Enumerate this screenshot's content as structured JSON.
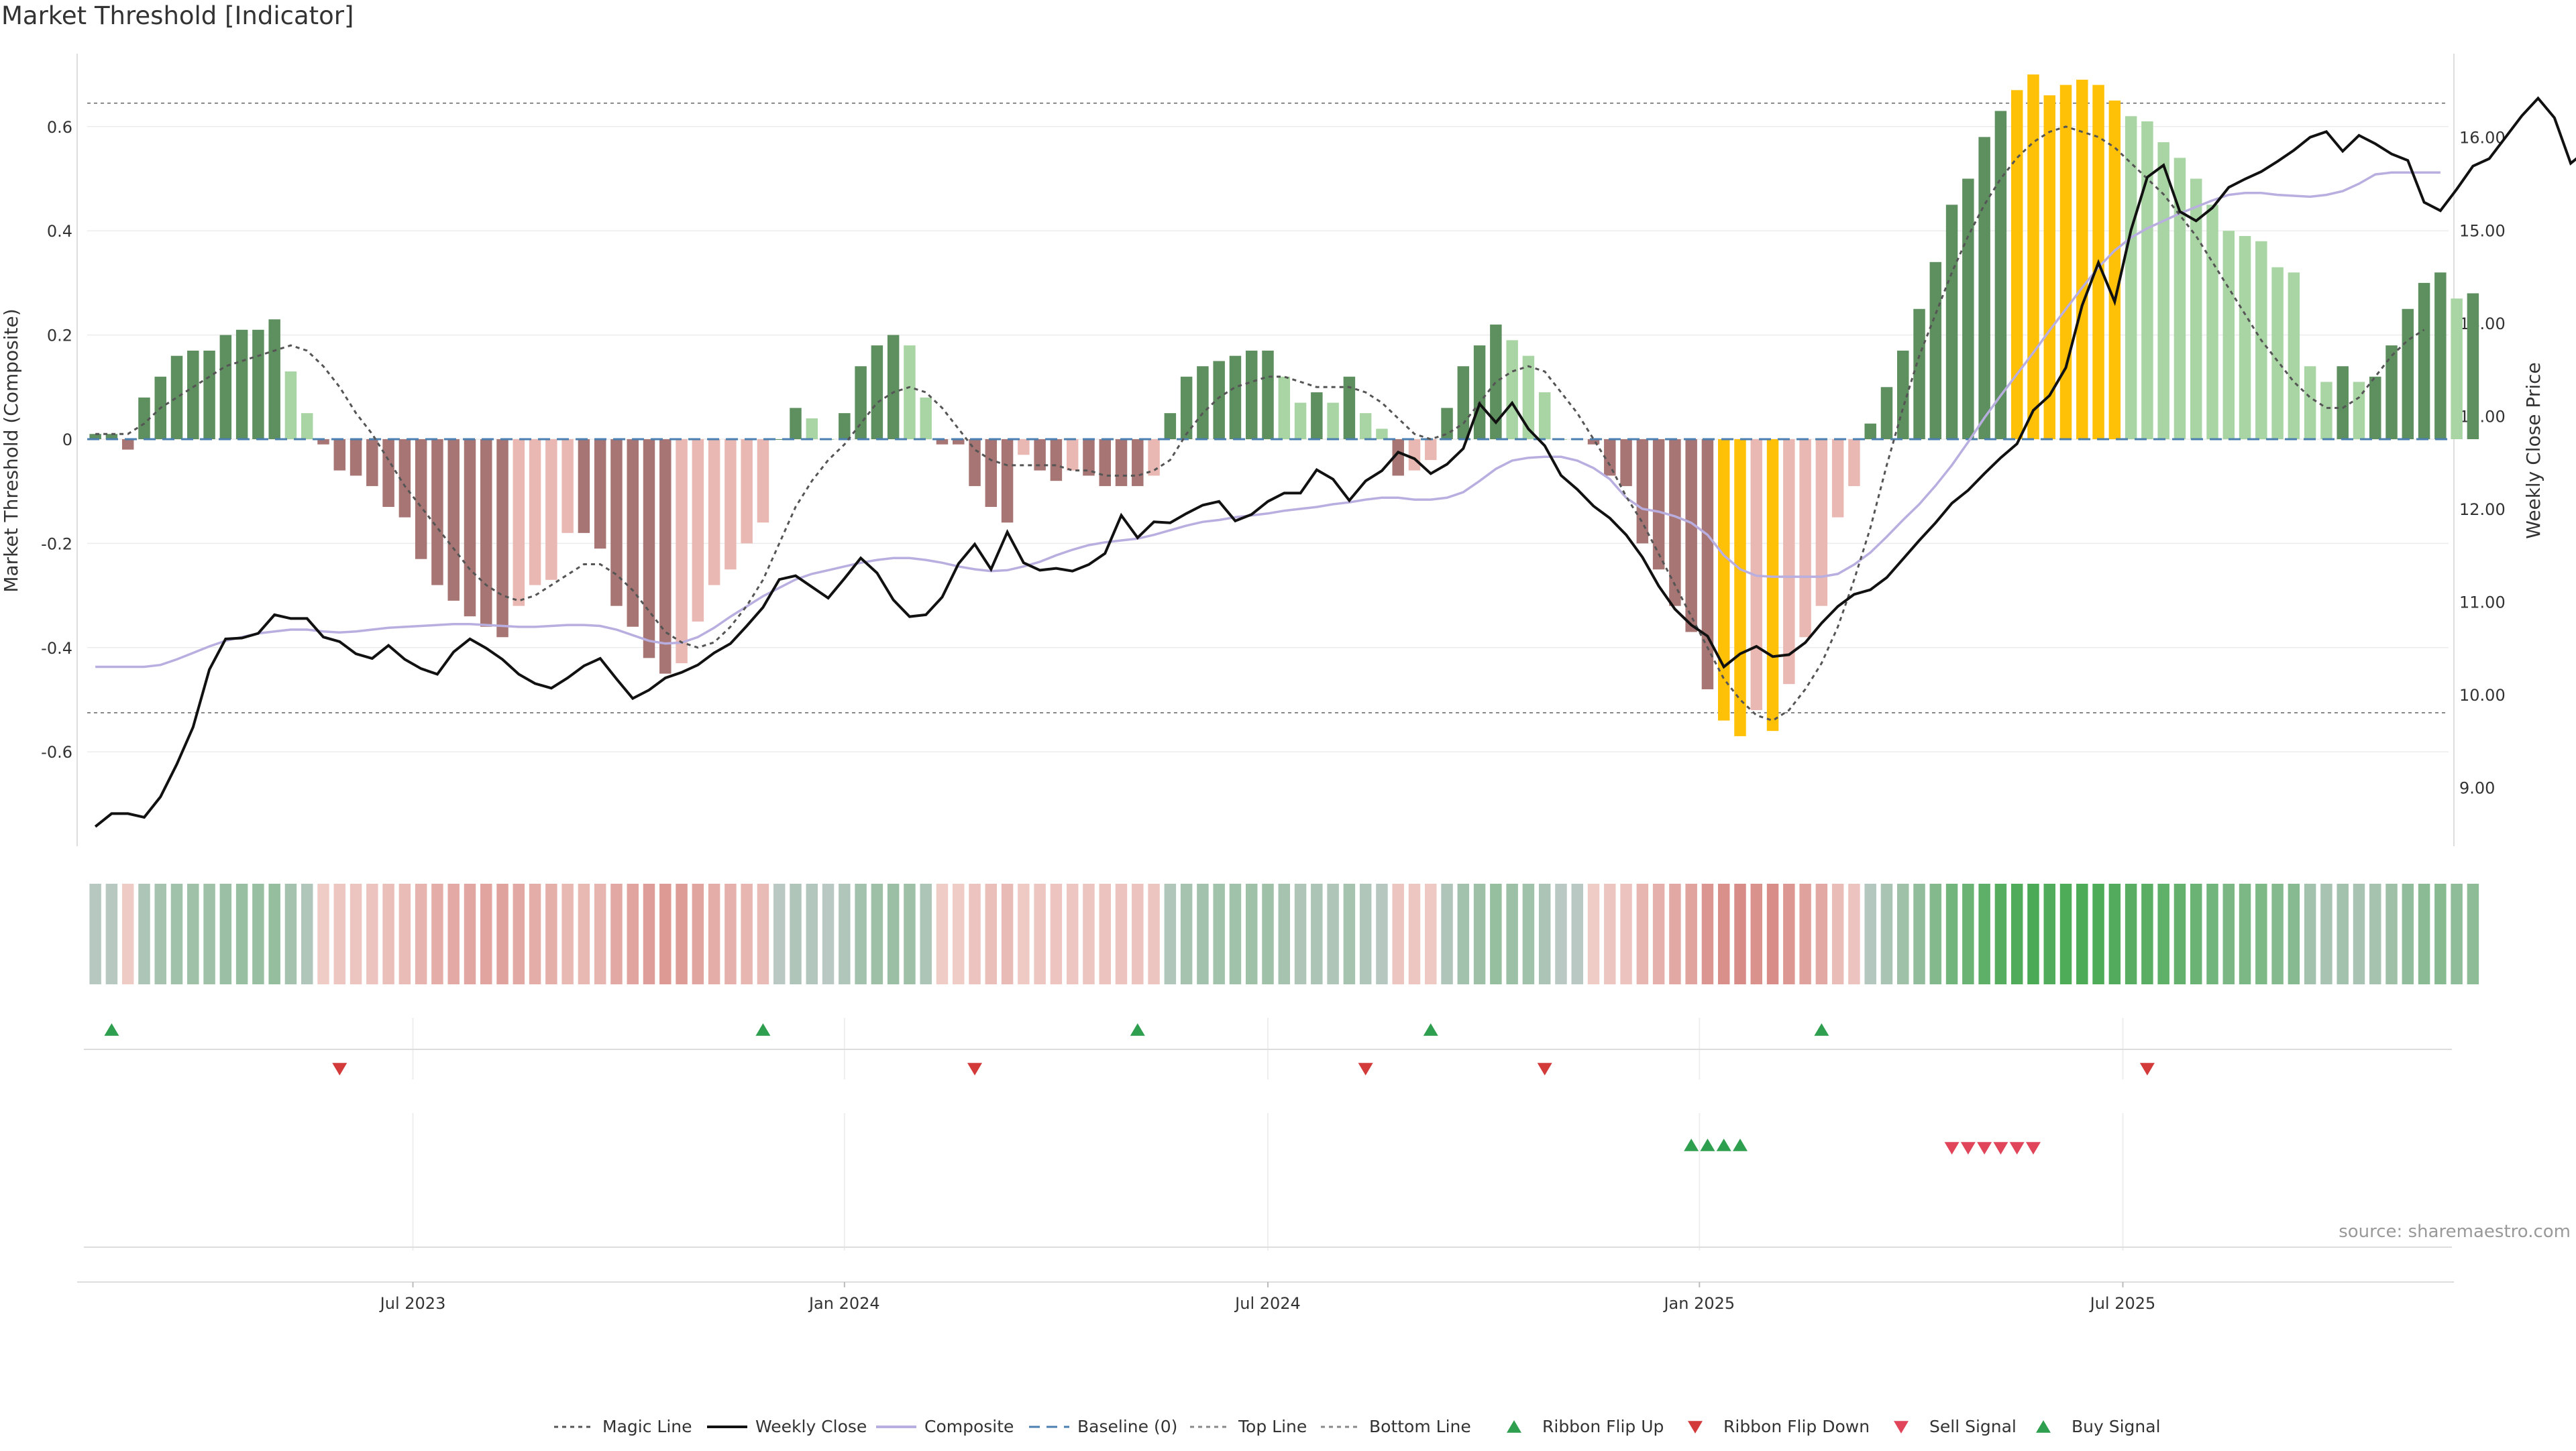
{
  "title": "Market Threshold [Indicator]",
  "source": "source: sharemaestro.com",
  "chart_data": {
    "type": "bar",
    "weeks": 145,
    "y_left": {
      "label": "Market Threshold (Composite)",
      "ylim": [
        -0.74,
        0.74
      ],
      "ticks": [
        -0.6,
        -0.4,
        -0.2,
        0,
        0.2,
        0.4,
        0.6
      ],
      "tick_labels": [
        "-0.6",
        "-0.4",
        "-0.2",
        "0",
        "0.2",
        "0.4",
        "0.6"
      ]
    },
    "y_right": {
      "label": "Weekly Close Price",
      "ylim": [
        8.6,
        16.9
      ],
      "ticks": [
        9,
        10,
        11,
        12,
        13,
        14,
        15,
        16
      ],
      "tick_labels": [
        "9.00",
        "10.00",
        "11.00",
        "12.00",
        "13.00",
        "14.00",
        "15.00",
        "16.00"
      ]
    },
    "x_ticks": [
      {
        "label": "Jul 2023",
        "week": 20
      },
      {
        "label": "Jan 2024",
        "week": 46.5
      },
      {
        "label": "Jul 2024",
        "week": 72.5
      },
      {
        "label": "Jan 2025",
        "week": 99
      },
      {
        "label": "Jul 2025",
        "week": 125
      }
    ],
    "top_line": 0.645,
    "bottom_line": -0.525,
    "baseline": 0,
    "composite_bars": [
      0.01,
      0.01,
      -0.02,
      0.08,
      0.12,
      0.16,
      0.17,
      0.17,
      0.2,
      0.21,
      0.21,
      0.23,
      0.13,
      0.05,
      -0.01,
      -0.06,
      -0.07,
      -0.09,
      -0.13,
      -0.15,
      -0.23,
      -0.28,
      -0.31,
      -0.34,
      -0.36,
      -0.38,
      -0.32,
      -0.28,
      -0.27,
      -0.18,
      -0.18,
      -0.21,
      -0.32,
      -0.36,
      -0.42,
      -0.45,
      -0.43,
      -0.35,
      -0.28,
      -0.25,
      -0.2,
      -0.16,
      0,
      0.06,
      0.04,
      0,
      0.05,
      0.14,
      0.18,
      0.2,
      0.18,
      0.08,
      -0.01,
      -0.01,
      -0.09,
      -0.13,
      -0.16,
      -0.03,
      -0.06,
      -0.08,
      -0.06,
      -0.07,
      -0.09,
      -0.09,
      -0.09,
      -0.07,
      0.05,
      0.12,
      0.14,
      0.15,
      0.16,
      0.17,
      0.17,
      0.12,
      0.07,
      0.09,
      0.07,
      0.12,
      0.05,
      0.02,
      -0.07,
      -0.06,
      -0.04,
      0.06,
      0.14,
      0.18,
      0.22,
      0.19,
      0.16,
      0.09,
      0,
      0,
      -0.01,
      -0.07,
      -0.09,
      -0.2,
      -0.25,
      -0.32,
      -0.37,
      -0.48,
      -0.54,
      -0.57,
      -0.52,
      -0.56,
      -0.47,
      -0.38,
      -0.32,
      -0.15,
      -0.09,
      0.03,
      0.1,
      0.17,
      0.25,
      0.34,
      0.45,
      0.5,
      0.58,
      0.63,
      0.67,
      0.7,
      0.66,
      0.68,
      0.69,
      0.68,
      0.65,
      0.62,
      0.61,
      0.57,
      0.54,
      0.5,
      0.45,
      0.4,
      0.39,
      0.38,
      0.33,
      0.32,
      0.14,
      0.11,
      0.14,
      0.11,
      0.12,
      0.18,
      0.25,
      0.3,
      0.32,
      0.27,
      0.28
    ],
    "magic_line": [
      0.01,
      0.01,
      0.01,
      0.03,
      0.06,
      0.08,
      0.1,
      0.12,
      0.14,
      0.15,
      0.16,
      0.17,
      0.18,
      0.17,
      0.14,
      0.1,
      0.05,
      0.01,
      -0.04,
      -0.09,
      -0.13,
      -0.17,
      -0.21,
      -0.25,
      -0.28,
      -0.3,
      -0.31,
      -0.3,
      -0.28,
      -0.26,
      -0.24,
      -0.24,
      -0.26,
      -0.29,
      -0.33,
      -0.37,
      -0.39,
      -0.4,
      -0.39,
      -0.36,
      -0.32,
      -0.27,
      -0.2,
      -0.13,
      -0.08,
      -0.04,
      -0.01,
      0.03,
      0.07,
      0.09,
      0.1,
      0.09,
      0.06,
      0.02,
      -0.02,
      -0.04,
      -0.05,
      -0.05,
      -0.05,
      -0.05,
      -0.06,
      -0.06,
      -0.07,
      -0.07,
      -0.07,
      -0.06,
      -0.04,
      0.01,
      0.05,
      0.08,
      0.1,
      0.11,
      0.12,
      0.12,
      0.11,
      0.1,
      0.1,
      0.1,
      0.09,
      0.07,
      0.04,
      0.01,
      0,
      0.01,
      0.03,
      0.07,
      0.11,
      0.13,
      0.14,
      0.13,
      0.09,
      0.05,
      0,
      -0.05,
      -0.11,
      -0.16,
      -0.22,
      -0.28,
      -0.34,
      -0.4,
      -0.46,
      -0.5,
      -0.53,
      -0.54,
      -0.52,
      -0.48,
      -0.43,
      -0.36,
      -0.27,
      -0.17,
      -0.05,
      0.06,
      0.16,
      0.24,
      0.32,
      0.39,
      0.45,
      0.5,
      0.54,
      0.57,
      0.59,
      0.6,
      0.59,
      0.58,
      0.56,
      0.53,
      0.5,
      0.47,
      0.43,
      0.39,
      0.34,
      0.29,
      0.24,
      0.19,
      0.15,
      0.11,
      0.08,
      0.06,
      0.06,
      0.08,
      0.12,
      0.16,
      0.19,
      0.21
    ],
    "composite_line": [
      0.02,
      0.02,
      0.02,
      0.02,
      0.02,
      0.02,
      0.02,
      0.02,
      0.02,
      0.02,
      0.02,
      0.02,
      0.02,
      0.02,
      0.02,
      0.01,
      0.01,
      0.01,
      0.01,
      0.01,
      0.01,
      0.01,
      0.01,
      0.01,
      0.01,
      0.0,
      0.0,
      0.0,
      0.0,
      0.0,
      0.0,
      0.0,
      0.0,
      0.0,
      0.0,
      0.0,
      0.0,
      0.0,
      0.0,
      0.0,
      0.0,
      0.0,
      0.0,
      0.0,
      0.0,
      0.0,
      0.0,
      0.0,
      0.0,
      0.0,
      0.0,
      0.0,
      0.0,
      0.0,
      0.0,
      0.0,
      0.0,
      0.0,
      0.0,
      0.0,
      0.0,
      0.0,
      0.0,
      0.0,
      0.0,
      0.0,
      0.0,
      0.0,
      0.0,
      0.0,
      0.0,
      0.0,
      0.0,
      0.0,
      0.0,
      0.0,
      0.0,
      0.0,
      0.0,
      0.0,
      0.0,
      0.0,
      0.0,
      0.0,
      0.0,
      0.0,
      0.0,
      0.0,
      0.0,
      0.0,
      0.0,
      0.0,
      0.0,
      0.0,
      0.0,
      0.0,
      0.0,
      0.0,
      0.0,
      0.0,
      0.0,
      0.0,
      0.0,
      0.0,
      0.0,
      0.0,
      0.0,
      0.0,
      0.0,
      0.0,
      0.0,
      0.0,
      0.0,
      0.0,
      0.0,
      0.0,
      0.0,
      0.0,
      0.0,
      0.0,
      0.0,
      0.0,
      0.0,
      0.0,
      0.0,
      0.0,
      0.0,
      0.0,
      0.0,
      0.0,
      0.0,
      0.0,
      0.0,
      0.0,
      0.0,
      0.0,
      0.0,
      0.0,
      0.0,
      0.0,
      0.0,
      0.0,
      0.0,
      0.0,
      0.0
    ],
    "composite_smooth_price": [
      10.3,
      10.3,
      10.3,
      10.3,
      10.32,
      10.38,
      10.45,
      10.52,
      10.58,
      10.62,
      10.66,
      10.68,
      10.7,
      10.7,
      10.68,
      10.67,
      10.68,
      10.7,
      10.72,
      10.73,
      10.74,
      10.75,
      10.76,
      10.76,
      10.75,
      10.74,
      10.73,
      10.73,
      10.74,
      10.75,
      10.75,
      10.74,
      10.7,
      10.64,
      10.58,
      10.55,
      10.56,
      10.62,
      10.72,
      10.84,
      10.95,
      11.06,
      11.15,
      11.24,
      11.3,
      11.34,
      11.38,
      11.42,
      11.45,
      11.47,
      11.47,
      11.45,
      11.42,
      11.38,
      11.35,
      11.33,
      11.34,
      11.38,
      11.43,
      11.5,
      11.56,
      11.61,
      11.64,
      11.66,
      11.68,
      11.72,
      11.77,
      11.82,
      11.86,
      11.88,
      11.91,
      11.93,
      11.95,
      11.98,
      12.0,
      12.02,
      12.05,
      12.07,
      12.1,
      12.12,
      12.12,
      12.1,
      12.1,
      12.12,
      12.18,
      12.3,
      12.43,
      12.52,
      12.55,
      12.56,
      12.56,
      12.52,
      12.44,
      12.32,
      12.12,
      12.0,
      11.97,
      11.92,
      11.85,
      11.72,
      11.5,
      11.35,
      11.28,
      11.27,
      11.27,
      11.27,
      11.27,
      11.3,
      11.4,
      11.53,
      11.7,
      11.88,
      12.05,
      12.25,
      12.47,
      12.72,
      12.98,
      13.22,
      13.45,
      13.68,
      13.92,
      14.15,
      14.38,
      14.6,
      14.78,
      14.92,
      15.02,
      15.1,
      15.18,
      15.25,
      15.32,
      15.38,
      15.4,
      15.4,
      15.38,
      15.37,
      15.36,
      15.38,
      15.42,
      15.5,
      15.6,
      15.62,
      15.62,
      15.62,
      15.62
    ],
    "weekly_close": [
      8.58,
      8.72,
      8.72,
      8.68,
      8.9,
      9.25,
      9.65,
      10.27,
      10.6,
      10.61,
      10.66,
      10.86,
      10.82,
      10.82,
      10.62,
      10.57,
      10.44,
      10.39,
      10.53,
      10.38,
      10.28,
      10.22,
      10.46,
      10.6,
      10.5,
      10.38,
      10.22,
      10.12,
      10.07,
      10.18,
      10.31,
      10.39,
      10.17,
      9.96,
      10.05,
      10.18,
      10.24,
      10.32,
      10.45,
      10.55,
      10.74,
      10.94,
      11.24,
      11.28,
      11.16,
      11.04,
      11.25,
      11.47,
      11.31,
      11.02,
      10.84,
      10.86,
      11.05,
      11.41,
      11.62,
      11.35,
      11.75,
      11.42,
      11.34,
      11.36,
      11.33,
      11.4,
      11.52,
      11.93,
      11.69,
      11.86,
      11.85,
      11.95,
      12.04,
      12.08,
      11.87,
      11.94,
      12.08,
      12.17,
      12.17,
      12.42,
      12.32,
      12.09,
      12.3,
      12.41,
      12.61,
      12.54,
      12.38,
      12.48,
      12.65,
      13.13,
      12.93,
      13.14,
      12.86,
      12.68,
      12.36,
      12.21,
      12.03,
      11.9,
      11.72,
      11.48,
      11.17,
      10.92,
      10.75,
      10.63,
      10.3,
      10.44,
      10.52,
      10.41,
      10.43,
      10.56,
      10.77,
      10.95,
      11.08,
      11.13,
      11.26,
      11.46,
      11.66,
      11.85,
      12.06,
      12.2,
      12.38,
      12.55,
      12.7,
      13.06,
      13.22,
      13.52,
      14.19,
      14.65,
      14.23,
      15.0,
      15.57,
      15.7,
      15.2,
      15.1,
      15.24,
      15.46,
      15.55,
      15.63,
      15.74,
      15.86,
      16.0,
      16.06,
      15.85,
      16.02,
      15.93,
      15.82,
      15.75,
      15.3,
      15.21,
      15.44,
      15.69,
      15.77,
      16.0,
      16.23,
      16.42,
      16.21,
      15.72,
      15.86
    ],
    "ribbon_colors": [],
    "ribbon_flip_up_weeks": [
      1,
      41,
      64,
      82,
      106
    ],
    "ribbon_flip_down_weeks": [
      15,
      54,
      78,
      89,
      126
    ],
    "buy_signal_weeks": [
      98,
      99,
      100,
      101
    ],
    "sell_signal_weeks": [
      114,
      115,
      116,
      117,
      118,
      119
    ],
    "legend": [
      {
        "label": "Magic Line",
        "kind": "dotted",
        "color": "#555555"
      },
      {
        "label": "Weekly Close",
        "kind": "solid",
        "color": "#111111"
      },
      {
        "label": "Composite",
        "kind": "solid",
        "color": "#b9aee0"
      },
      {
        "label": "Baseline (0)",
        "kind": "dashed",
        "color": "#4a7fb0"
      },
      {
        "label": "Top Line",
        "kind": "dotted",
        "color": "#888888"
      },
      {
        "label": "Bottom Line",
        "kind": "dotted",
        "color": "#888888"
      },
      {
        "label": "Ribbon Flip Up",
        "kind": "tri-up",
        "color": "#2e9e4f"
      },
      {
        "label": "Ribbon Flip Down",
        "kind": "tri-down",
        "color": "#d33a3a"
      },
      {
        "label": "Sell Signal",
        "kind": "tri-down",
        "color": "#e0455a"
      },
      {
        "label": "Buy Signal",
        "kind": "tri-up",
        "color": "#2e9e4f"
      }
    ]
  }
}
